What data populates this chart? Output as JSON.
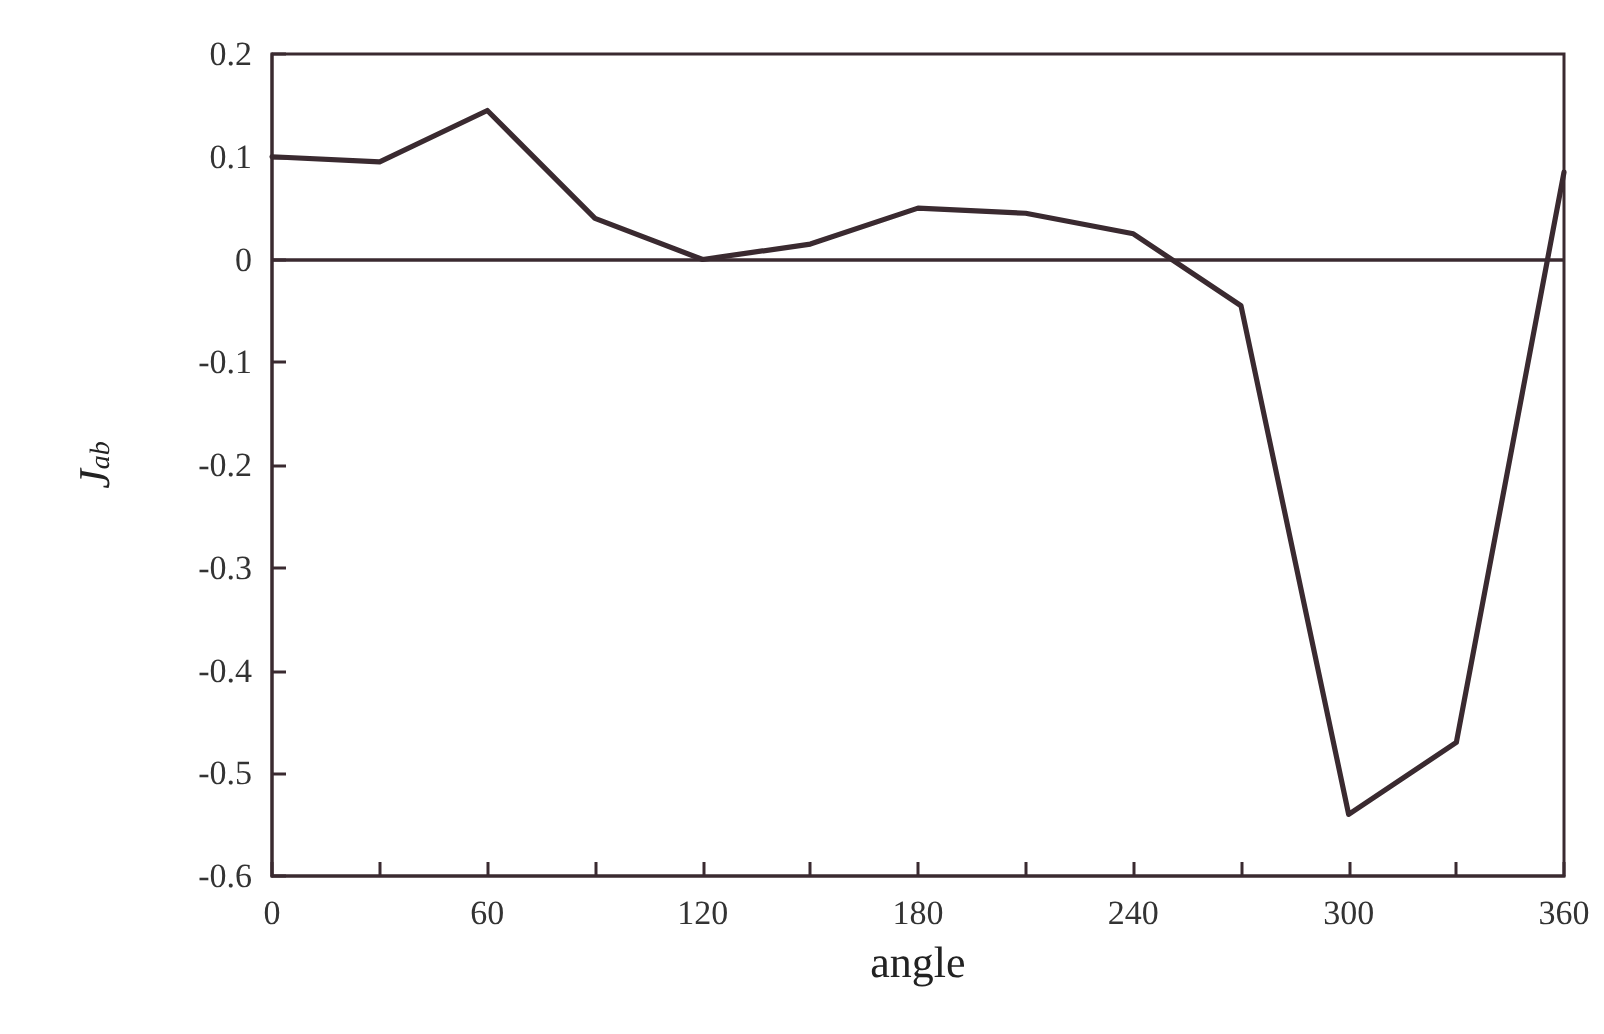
{
  "chart_data": {
    "type": "line",
    "xlabel": "angle",
    "ylabel": "J$_{ab}$",
    "x": [
      0,
      30,
      60,
      90,
      120,
      150,
      180,
      210,
      240,
      270,
      300,
      330,
      360
    ],
    "series": [
      {
        "color": "#3a2a30",
        "values": [
          0.1,
          0.095,
          0.145,
          0.04,
          0.0,
          0.015,
          0.05,
          0.045,
          0.025,
          -0.045,
          -0.54,
          -0.47,
          0.085
        ]
      }
    ],
    "xlim": [
      0,
      360
    ],
    "xticks": [
      0,
      {
        "value": 30,
        "label": null
      },
      60,
      {
        "value": 90,
        "label": null
      },
      120,
      {
        "value": 150,
        "label": null
      },
      180,
      {
        "value": 210,
        "label": null
      },
      240,
      {
        "value": 270,
        "label": null
      },
      300,
      {
        "value": 330,
        "label": null
      },
      360
    ],
    "ylim": [
      -0.6,
      0.2
    ],
    "yticks": [
      -0.6,
      -0.5,
      -0.4,
      -0.3,
      -0.2,
      -0.1,
      0,
      0.1,
      0.2
    ],
    "ref_lines": [
      {
        "axis": "y",
        "value": 0,
        "color": "#3a2a30"
      }
    ],
    "marker": "none",
    "line_style": "solid"
  }
}
